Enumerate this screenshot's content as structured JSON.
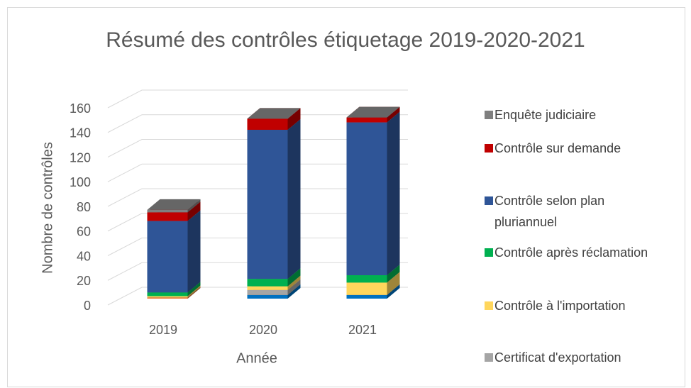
{
  "chart_data": {
    "type": "bar3d_stacked",
    "title": "Résumé des contrôles étiquetage 2019-2020-2021",
    "x_label": "Année",
    "y_label": "Nombre de contrôles",
    "categories": [
      "2019",
      "2020",
      "2021"
    ],
    "series": [
      {
        "name": null,
        "color": "#0070c0",
        "values": [
          0,
          3,
          3
        ]
      },
      {
        "name": null,
        "color": "#ed7d31",
        "values": [
          1,
          0,
          0
        ]
      },
      {
        "name": "Certificat d'exportation",
        "color": "#a5a5a5",
        "values": [
          0,
          4,
          0
        ]
      },
      {
        "name": "Contrôle à l'importation",
        "color": "#ffd65c",
        "values": [
          1,
          3,
          10
        ]
      },
      {
        "name": "Contrôle après réclamation",
        "color": "#00b050",
        "values": [
          3,
          6,
          6
        ]
      },
      {
        "name": "Contrôle selon plan pluriannuel",
        "color": "#2f5597",
        "values": [
          58,
          121,
          124
        ]
      },
      {
        "name": "Contrôle sur demande",
        "color": "#c00000",
        "values": [
          7,
          9,
          4
        ]
      },
      {
        "name": "Enquête judiciaire",
        "color": "#7f7f7f",
        "values": [
          2,
          0,
          0
        ]
      }
    ],
    "ylim": [
      0,
      160
    ],
    "yticks": [
      0,
      20,
      40,
      60,
      80,
      100,
      120,
      140,
      160
    ],
    "grid": true
  }
}
